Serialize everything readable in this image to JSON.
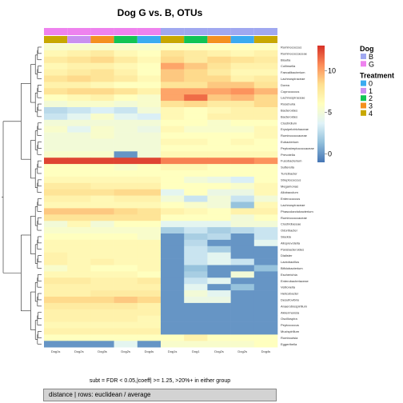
{
  "chart_data": {
    "type": "heatmap",
    "title": "Dog G vs. B, OTUs",
    "subtitle": "subt = FDR < 0.05,|coeff| >= 1.25, >20%+ in either group",
    "footer": "distance | rows: euclidean / average",
    "columns": [
      {
        "label": "Dog1s",
        "dog": "G",
        "treatment": "4"
      },
      {
        "label": "Dog2s",
        "dog": "G",
        "treatment": "1"
      },
      {
        "label": "Dog3s",
        "dog": "G",
        "treatment": "3"
      },
      {
        "label": "Dog2s",
        "dog": "G",
        "treatment": "2"
      },
      {
        "label": "Dog4s",
        "dog": "G",
        "treatment": "0"
      },
      {
        "label": "Dog1s",
        "dog": "B",
        "treatment": "4"
      },
      {
        "label": "Dog1",
        "dog": "B",
        "treatment": "2"
      },
      {
        "label": "Dog2s",
        "dog": "B",
        "treatment": "3"
      },
      {
        "label": "Dog2s",
        "dog": "B",
        "treatment": "0"
      },
      {
        "label": "Dog4s",
        "dog": "B",
        "treatment": "4"
      }
    ],
    "rows": [
      "Ruminococcus",
      "Ruminococcaceae",
      "Blautia",
      "Collinsella",
      "Faecalibacterium",
      "Lachnospiraceae",
      "Dorea",
      "Coprococcus",
      "Lachnospiraceae",
      "Roseburia",
      "Bacteroides",
      "Bacteroides",
      "Clostridium",
      "Erysipelotrichaceae",
      "Ruminococcaceae",
      "Eubacterium",
      "Peptostreptococcaceae",
      "Prevotella",
      "Fusobacterium",
      "Sutterella",
      "Turicibacter",
      "Streptococcus",
      "Megamonas",
      "Allobaculum",
      "Enterococcus",
      "Lachnospiraceae",
      "Phascolarctobacterium",
      "Ruminococcaceae",
      "Clostridiaceae",
      "Odoribacter",
      "Slackia",
      "Alloprevotella",
      "Parabacteroides",
      "Dialister",
      "Lactobacillus",
      "Bifidobacterium",
      "Escherichia",
      "Enterobacteriaceae",
      "Veillonella",
      "Helicobacter",
      "Desulfovibrio",
      "Anaerobiospirillum",
      "Akkermansia",
      "Oscillospira",
      "Peptococcus",
      "Mucispirillum",
      "Romboutsia",
      "Eggerthella"
    ],
    "values": [
      [
        5.5,
        5.5,
        5.5,
        5.5,
        5.5,
        6,
        6,
        6,
        6,
        6
      ],
      [
        6.5,
        7,
        7.5,
        6.5,
        6,
        8,
        7.5,
        7,
        6.5,
        7
      ],
      [
        7.5,
        8,
        8.5,
        7.5,
        6.5,
        8.5,
        7.5,
        8.5,
        8,
        7.5
      ],
      [
        6.5,
        7,
        7,
        6.5,
        6,
        10,
        9,
        8,
        7,
        7
      ],
      [
        7,
        7.5,
        8,
        7,
        6,
        9,
        8.5,
        7.5,
        6.5,
        6.5
      ],
      [
        8,
        8.5,
        8,
        7.5,
        6.5,
        9,
        8.5,
        8.5,
        7,
        7.5
      ],
      [
        7,
        7,
        6.5,
        6,
        6,
        8,
        8,
        9,
        9,
        8
      ],
      [
        8,
        8.5,
        8.5,
        8,
        7,
        10,
        10,
        10,
        10.5,
        9.5
      ],
      [
        6,
        6.5,
        7,
        6,
        5.5,
        10,
        11.5,
        9,
        9.5,
        8.5
      ],
      [
        5,
        5.5,
        5.5,
        5,
        5.5,
        8,
        8.5,
        7.5,
        7.5,
        8.5
      ],
      [
        2.5,
        3,
        3.5,
        3,
        5,
        6.5,
        6,
        6.5,
        7,
        7
      ],
      [
        3,
        4,
        5.5,
        4,
        3.5,
        6.5,
        6,
        7,
        7,
        7
      ],
      [
        5,
        5,
        5,
        5,
        5,
        6,
        6,
        5.5,
        6,
        6
      ],
      [
        5.5,
        4,
        5.5,
        5,
        4.5,
        6.5,
        5.5,
        5.5,
        5.5,
        6.5
      ],
      [
        5,
        5,
        5.5,
        5,
        5,
        6,
        6,
        6,
        6,
        6.5
      ],
      [
        5,
        5,
        5,
        5,
        5,
        6.5,
        6.5,
        6,
        6.5,
        6
      ],
      [
        5,
        5,
        5,
        5,
        5,
        6,
        6,
        6,
        6,
        6
      ],
      [
        5.5,
        5.5,
        5.5,
        0,
        5,
        6.5,
        6.5,
        6.5,
        6.5,
        6.5
      ],
      [
        12.5,
        12.5,
        12.5,
        12.5,
        12.5,
        11,
        11,
        11,
        11,
        10.5
      ],
      [
        6,
        6,
        6,
        5.5,
        6,
        6.5,
        6.5,
        6,
        6,
        6
      ],
      [
        6,
        6,
        6,
        6,
        6,
        6,
        6,
        6,
        6,
        6
      ],
      [
        6.5,
        6.5,
        6.5,
        6.5,
        6.5,
        6,
        5,
        4.5,
        3.5,
        6
      ],
      [
        7.5,
        7.5,
        7,
        7,
        7,
        6,
        6,
        6,
        5.5,
        6.5
      ],
      [
        8,
        8,
        8,
        8.5,
        8.5,
        4,
        6,
        4.5,
        4.5,
        6.5
      ],
      [
        7,
        7,
        6.5,
        7,
        7,
        5,
        3,
        5,
        3,
        5
      ],
      [
        6.5,
        6.5,
        6.5,
        6.5,
        6.5,
        6,
        5.5,
        5,
        1.5,
        6.5
      ],
      [
        9,
        9,
        9,
        8.5,
        8,
        7,
        6.5,
        6,
        7,
        7
      ],
      [
        8,
        8,
        8,
        8,
        8,
        6,
        6,
        6,
        5,
        6
      ],
      [
        5,
        6.5,
        5,
        6,
        6,
        4,
        4,
        4,
        5,
        5
      ],
      [
        5.5,
        5.5,
        5.5,
        5.5,
        5.5,
        2,
        3,
        2,
        2.5,
        3
      ],
      [
        6,
        6,
        6,
        6,
        5.5,
        0,
        2,
        2.5,
        0,
        3
      ],
      [
        6.5,
        6.5,
        6.5,
        6.5,
        6.5,
        0,
        2.5,
        0,
        0,
        4
      ],
      [
        6.5,
        6.5,
        6.5,
        6.5,
        6.5,
        0,
        3,
        2,
        0,
        0
      ],
      [
        7,
        6.5,
        6.5,
        6.5,
        6.5,
        0,
        3,
        4,
        0,
        0
      ],
      [
        7,
        6.5,
        7,
        6.5,
        6.5,
        0,
        3,
        4,
        3,
        0
      ],
      [
        5.5,
        6.5,
        6,
        6,
        6.5,
        0,
        1.5,
        0,
        0,
        1.5
      ],
      [
        6.5,
        6.5,
        6.5,
        6.5,
        6,
        0,
        2,
        0,
        5,
        0
      ],
      [
        7.5,
        7.5,
        7,
        7,
        7.5,
        0,
        3,
        4,
        0,
        0
      ],
      [
        7,
        7,
        7,
        7,
        7,
        0,
        4,
        0,
        1.5,
        0
      ],
      [
        7,
        7,
        7.5,
        7.5,
        7.5,
        0,
        5,
        4,
        0,
        0
      ],
      [
        8.5,
        8.5,
        8.5,
        9,
        8.5,
        0,
        4.5,
        4.5,
        0,
        0
      ],
      [
        7.5,
        7.5,
        7.5,
        7.5,
        7,
        0,
        0,
        0,
        0,
        0
      ],
      [
        7,
        7,
        7,
        7,
        7,
        0,
        0,
        0,
        0,
        0
      ],
      [
        7,
        7,
        7,
        7,
        6.5,
        0,
        0,
        0,
        0,
        0
      ],
      [
        6.5,
        6.5,
        6.5,
        6.5,
        6.5,
        0,
        0,
        0,
        0,
        0
      ],
      [
        7,
        7,
        7,
        7,
        7,
        0,
        0,
        0,
        0,
        0
      ],
      [
        6,
        6,
        6,
        6,
        6,
        6,
        7,
        6,
        6,
        6
      ],
      [
        0,
        0,
        0,
        4,
        0,
        5.5,
        5.5,
        5.5,
        5.5,
        6
      ]
    ],
    "color_scale": {
      "min": -1,
      "max": 13,
      "ticks": [
        0,
        5,
        10
      ],
      "colors": [
        "#4575b4",
        "#91bfdb",
        "#e0f3f8",
        "#ffffbf",
        "#fee090",
        "#fc8d59",
        "#d73027"
      ]
    },
    "legends": [
      {
        "title": "Dog",
        "entries": [
          {
            "label": "B",
            "color": "#a0a8f0"
          },
          {
            "label": "G",
            "color": "#ee82ee"
          }
        ]
      },
      {
        "title": "Treatment",
        "entries": [
          {
            "label": "0",
            "color": "#3aabf0"
          },
          {
            "label": "1",
            "color": "#c990f0"
          },
          {
            "label": "2",
            "color": "#11c454"
          },
          {
            "label": "3",
            "color": "#f49020"
          },
          {
            "label": "4",
            "color": "#c8a800"
          }
        ]
      }
    ]
  }
}
